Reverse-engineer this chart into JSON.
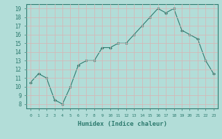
{
  "x": [
    0,
    1,
    2,
    3,
    4,
    5,
    6,
    7,
    8,
    9,
    10,
    11,
    12,
    13,
    14,
    15,
    16,
    17,
    18,
    19,
    20,
    21,
    22,
    23
  ],
  "y": [
    10.5,
    11.5,
    11.0,
    8.5,
    8.0,
    10.0,
    12.5,
    13.0,
    13.0,
    14.5,
    14.5,
    15.0,
    15.0,
    16.0,
    17.0,
    18.0,
    19.0,
    18.5,
    19.0,
    16.5,
    16.0,
    15.5,
    13.0,
    11.5
  ],
  "xlabel": "Humidex (Indice chaleur)",
  "ylim": [
    7.5,
    19.5
  ],
  "xlim": [
    -0.5,
    23.5
  ],
  "yticks": [
    8,
    9,
    10,
    11,
    12,
    13,
    14,
    15,
    16,
    17,
    18,
    19
  ],
  "xticks": [
    0,
    1,
    2,
    3,
    4,
    5,
    6,
    7,
    8,
    9,
    10,
    11,
    12,
    13,
    14,
    15,
    16,
    17,
    18,
    19,
    20,
    21,
    22,
    23
  ],
  "xtick_labels": [
    "0",
    "1",
    "2",
    "3",
    "4",
    "5",
    "6",
    "7",
    "8",
    "9",
    "10",
    "11",
    "12",
    "13",
    "14",
    "15",
    "16",
    "17",
    "18",
    "19",
    "20",
    "21",
    "22",
    "23"
  ],
  "line_color": "#2d7a6e",
  "marker": "D",
  "marker_size": 2,
  "bg_color": "#b2ddd8",
  "grid_color": "#d4b8b8",
  "axes_color": "#2d7a6e"
}
